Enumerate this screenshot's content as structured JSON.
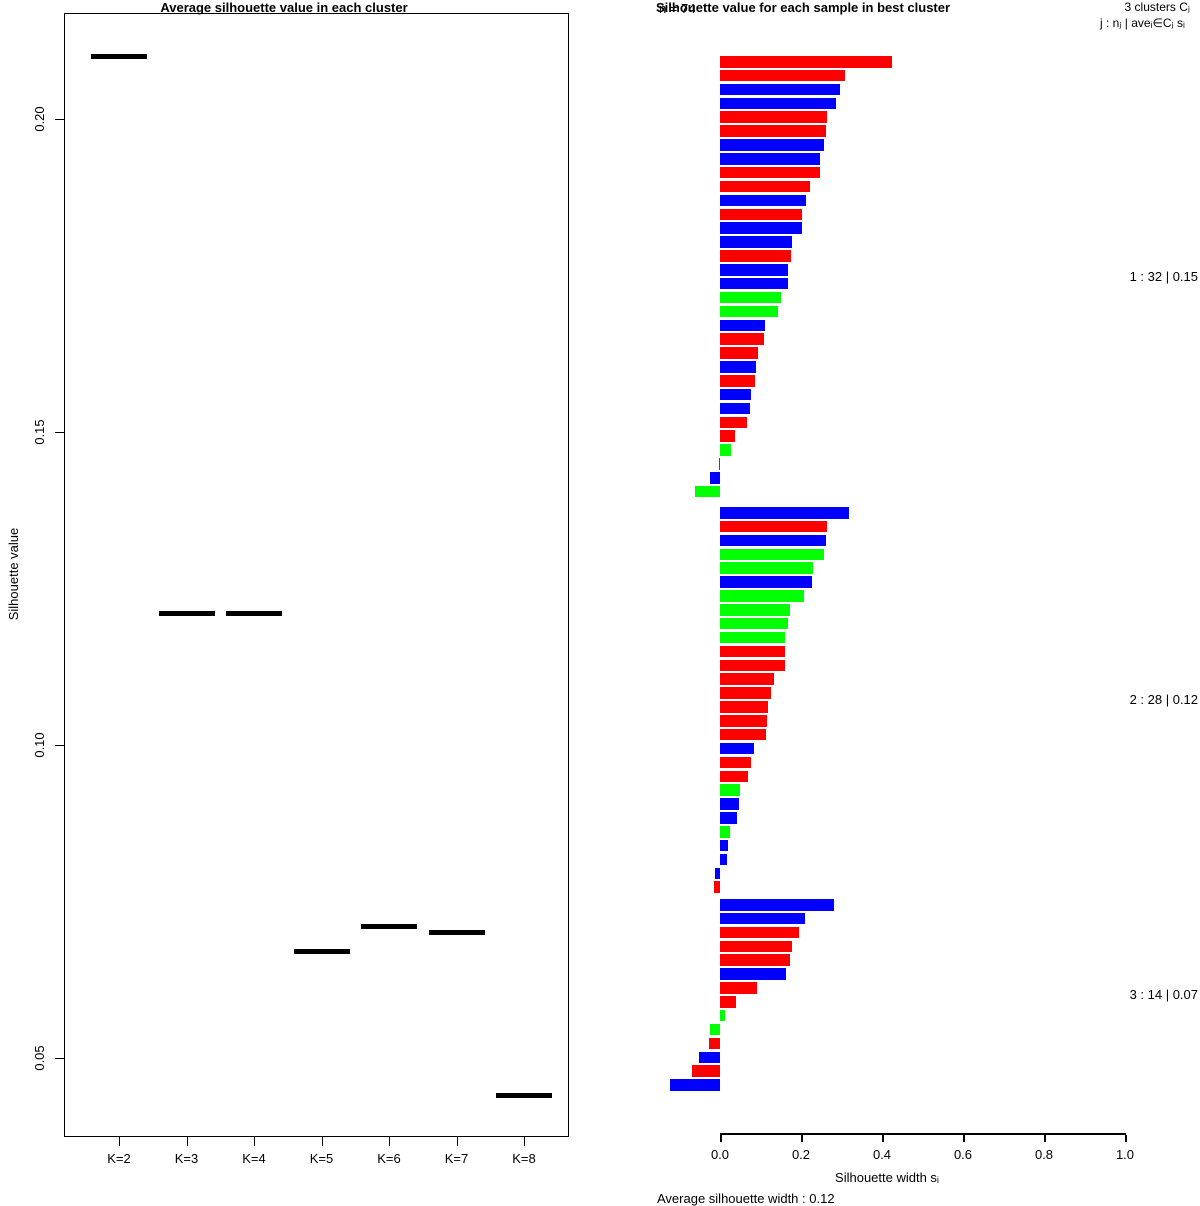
{
  "colors": {
    "red": "#FF0000",
    "blue": "#0000FF",
    "green": "#00FF00",
    "axis": "#000000"
  },
  "chart_data": [
    {
      "type": "scatter",
      "title": "Average silhouette value in each cluster",
      "ylabel": "Silhouette value",
      "xlabel": "",
      "marker": "horizontal-dash",
      "grid": false,
      "categories": [
        "K=2",
        "K=3",
        "K=4",
        "K=5",
        "K=6",
        "K=7",
        "K=8"
      ],
      "values": [
        0.21,
        0.121,
        0.121,
        0.067,
        0.071,
        0.07,
        0.044
      ],
      "yticks": [
        0.05,
        0.1,
        0.15,
        0.2
      ],
      "ytick_labels": [
        "0.05",
        "0.10",
        "0.15",
        "0.20"
      ],
      "ylim": [
        0.038,
        0.217
      ]
    },
    {
      "type": "bar",
      "orientation": "horizontal",
      "title": "Silhouette value for each sample in best cluster",
      "n_label": "n = 74",
      "header_line1": "3 clusters Cⱼ",
      "header_line2": "j :  nⱼ | aveᵢ∈Cⱼ sᵢ",
      "xlabel": "Silhouette width sᵢ",
      "footer": "Average silhouette width : 0.12",
      "xticks": [
        0.0,
        0.2,
        0.4,
        0.6,
        0.8,
        1.0
      ],
      "xtick_labels": [
        "0.0",
        "0.2",
        "0.4",
        "0.6",
        "0.8",
        "1.0"
      ],
      "xlim": [
        -0.15,
        1.0
      ],
      "legend_position": "none",
      "clusters": [
        {
          "label": "1 :  32  |  0.15",
          "n": 32,
          "avg_width": 0.15,
          "bars": [
            {
              "v": 0.425,
              "c": "red"
            },
            {
              "v": 0.309,
              "c": "red"
            },
            {
              "v": 0.296,
              "c": "blue"
            },
            {
              "v": 0.286,
              "c": "blue"
            },
            {
              "v": 0.263,
              "c": "red"
            },
            {
              "v": 0.261,
              "c": "red"
            },
            {
              "v": 0.258,
              "c": "blue"
            },
            {
              "v": 0.248,
              "c": "blue"
            },
            {
              "v": 0.246,
              "c": "red"
            },
            {
              "v": 0.221,
              "c": "red"
            },
            {
              "v": 0.212,
              "c": "blue"
            },
            {
              "v": 0.203,
              "c": "red"
            },
            {
              "v": 0.202,
              "c": "blue"
            },
            {
              "v": 0.177,
              "c": "blue"
            },
            {
              "v": 0.175,
              "c": "red"
            },
            {
              "v": 0.169,
              "c": "blue"
            },
            {
              "v": 0.168,
              "c": "blue"
            },
            {
              "v": 0.151,
              "c": "green"
            },
            {
              "v": 0.142,
              "c": "green"
            },
            {
              "v": 0.11,
              "c": "blue"
            },
            {
              "v": 0.108,
              "c": "red"
            },
            {
              "v": 0.093,
              "c": "red"
            },
            {
              "v": 0.089,
              "c": "blue"
            },
            {
              "v": 0.086,
              "c": "red"
            },
            {
              "v": 0.077,
              "c": "blue"
            },
            {
              "v": 0.073,
              "c": "blue"
            },
            {
              "v": 0.067,
              "c": "red"
            },
            {
              "v": 0.037,
              "c": "red"
            },
            {
              "v": 0.028,
              "c": "green"
            },
            {
              "v": -0.003,
              "c": "red"
            },
            {
              "v": -0.024,
              "c": "blue"
            },
            {
              "v": -0.061,
              "c": "green"
            }
          ]
        },
        {
          "label": "2 :  28  |  0.12",
          "n": 28,
          "avg_width": 0.12,
          "bars": [
            {
              "v": 0.318,
              "c": "blue"
            },
            {
              "v": 0.263,
              "c": "red"
            },
            {
              "v": 0.261,
              "c": "blue"
            },
            {
              "v": 0.258,
              "c": "green"
            },
            {
              "v": 0.229,
              "c": "green"
            },
            {
              "v": 0.226,
              "c": "blue"
            },
            {
              "v": 0.208,
              "c": "green"
            },
            {
              "v": 0.174,
              "c": "green"
            },
            {
              "v": 0.168,
              "c": "green"
            },
            {
              "v": 0.161,
              "c": "green"
            },
            {
              "v": 0.161,
              "c": "red"
            },
            {
              "v": 0.16,
              "c": "red"
            },
            {
              "v": 0.134,
              "c": "red"
            },
            {
              "v": 0.127,
              "c": "red"
            },
            {
              "v": 0.119,
              "c": "red"
            },
            {
              "v": 0.115,
              "c": "red"
            },
            {
              "v": 0.114,
              "c": "red"
            },
            {
              "v": 0.084,
              "c": "blue"
            },
            {
              "v": 0.077,
              "c": "red"
            },
            {
              "v": 0.069,
              "c": "red"
            },
            {
              "v": 0.05,
              "c": "green"
            },
            {
              "v": 0.048,
              "c": "blue"
            },
            {
              "v": 0.042,
              "c": "blue"
            },
            {
              "v": 0.024,
              "c": "green"
            },
            {
              "v": 0.02,
              "c": "blue"
            },
            {
              "v": 0.018,
              "c": "blue"
            },
            {
              "v": -0.012,
              "c": "blue"
            },
            {
              "v": -0.015,
              "c": "red"
            }
          ]
        },
        {
          "label": "3 :  14  |  0.07",
          "n": 14,
          "avg_width": 0.07,
          "bars": [
            {
              "v": 0.282,
              "c": "blue"
            },
            {
              "v": 0.211,
              "c": "blue"
            },
            {
              "v": 0.195,
              "c": "red"
            },
            {
              "v": 0.179,
              "c": "red"
            },
            {
              "v": 0.173,
              "c": "red"
            },
            {
              "v": 0.163,
              "c": "blue"
            },
            {
              "v": 0.091,
              "c": "red"
            },
            {
              "v": 0.04,
              "c": "red"
            },
            {
              "v": 0.013,
              "c": "green"
            },
            {
              "v": -0.024,
              "c": "green"
            },
            {
              "v": -0.026,
              "c": "red"
            },
            {
              "v": -0.051,
              "c": "blue"
            },
            {
              "v": -0.07,
              "c": "red"
            },
            {
              "v": -0.124,
              "c": "blue"
            }
          ]
        }
      ]
    }
  ]
}
